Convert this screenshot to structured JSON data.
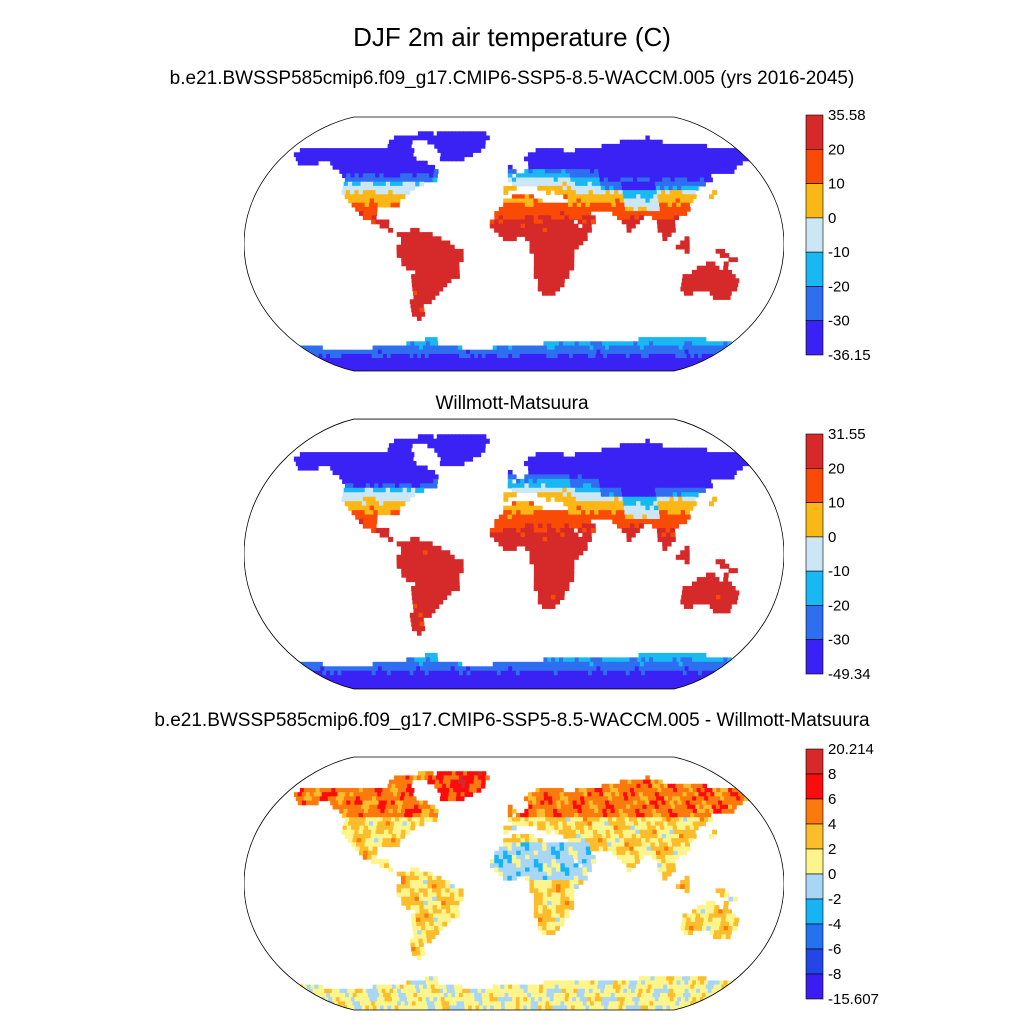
{
  "title": "DJF 2m air temperature (C)",
  "panels": [
    {
      "title": "b.e21.BWSSP585cmip6.f09_g17.CMIP6-SSP5-8.5-WACCM.005 (yrs 2016-2045)",
      "kind": "abs",
      "colorbar": {
        "labels": [
          "35.58",
          "20",
          "10",
          "0",
          "-10",
          "-20",
          "-30",
          "-36.15"
        ],
        "colors": [
          "#d62a2a",
          "#fa4b06",
          "#fbb715",
          "#cbe7f5",
          "#19b8f2",
          "#2f6ef0",
          "#3b22f4"
        ]
      }
    },
    {
      "title": "Willmott-Matsuura",
      "kind": "obs",
      "colorbar": {
        "labels": [
          "31.55",
          "20",
          "10",
          "0",
          "-10",
          "-20",
          "-30",
          "-49.34"
        ],
        "colors": [
          "#d62a2a",
          "#fa4b06",
          "#fbb715",
          "#cbe7f5",
          "#19b8f2",
          "#2f6ef0",
          "#3b22f4"
        ]
      }
    },
    {
      "title": "b.e21.BWSSP585cmip6.f09_g17.CMIP6-SSP5-8.5-WACCM.005 - Willmott-Matsuura",
      "kind": "diff",
      "colorbar": {
        "labels": [
          "20.214",
          "8",
          "6",
          "4",
          "2",
          "0",
          "-2",
          "-4",
          "-6",
          "-8",
          "-15.607"
        ],
        "colors": [
          "#d62a2a",
          "#fb0d0d",
          "#fa7a0d",
          "#fbbd2c",
          "#fcf58c",
          "#a9d6f5",
          "#14b4f5",
          "#2472f0",
          "#2346e6",
          "#3b1cf2"
        ]
      }
    }
  ]
}
